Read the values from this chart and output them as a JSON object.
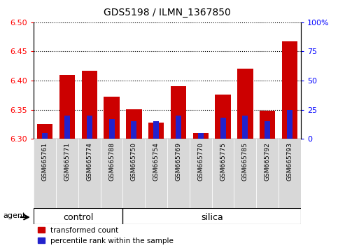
{
  "title": "GDS5198 / ILMN_1367850",
  "samples": [
    "GSM665761",
    "GSM665771",
    "GSM665774",
    "GSM665788",
    "GSM665750",
    "GSM665754",
    "GSM665769",
    "GSM665770",
    "GSM665775",
    "GSM665785",
    "GSM665792",
    "GSM665793"
  ],
  "groups": [
    "control",
    "control",
    "control",
    "control",
    "silica",
    "silica",
    "silica",
    "silica",
    "silica",
    "silica",
    "silica",
    "silica"
  ],
  "transformed_count": [
    6.325,
    6.41,
    6.417,
    6.372,
    6.351,
    6.328,
    6.39,
    6.31,
    6.376,
    6.42,
    6.348,
    6.467
  ],
  "percentile_rank": [
    5,
    20,
    20,
    17,
    15,
    15,
    20,
    5,
    18,
    20,
    15,
    25
  ],
  "ylim_left": [
    6.3,
    6.5
  ],
  "ylim_right": [
    0,
    100
  ],
  "yticks_left": [
    6.3,
    6.35,
    6.4,
    6.45,
    6.5
  ],
  "yticks_right": [
    0,
    25,
    50,
    75,
    100
  ],
  "bar_base": 6.3,
  "bar_color_red": "#cc0000",
  "bar_color_blue": "#2222cc",
  "control_color": "#90ee90",
  "silica_color": "#90ee90",
  "group_label_control": "control",
  "group_label_silica": "silica",
  "legend_red": "transformed count",
  "legend_blue": "percentile rank within the sample",
  "agent_label": "agent",
  "background_color": "#ffffff",
  "plot_bg": "#ffffff",
  "bar_width": 0.7,
  "blue_bar_width": 0.25,
  "control_n": 4,
  "silica_n": 8
}
